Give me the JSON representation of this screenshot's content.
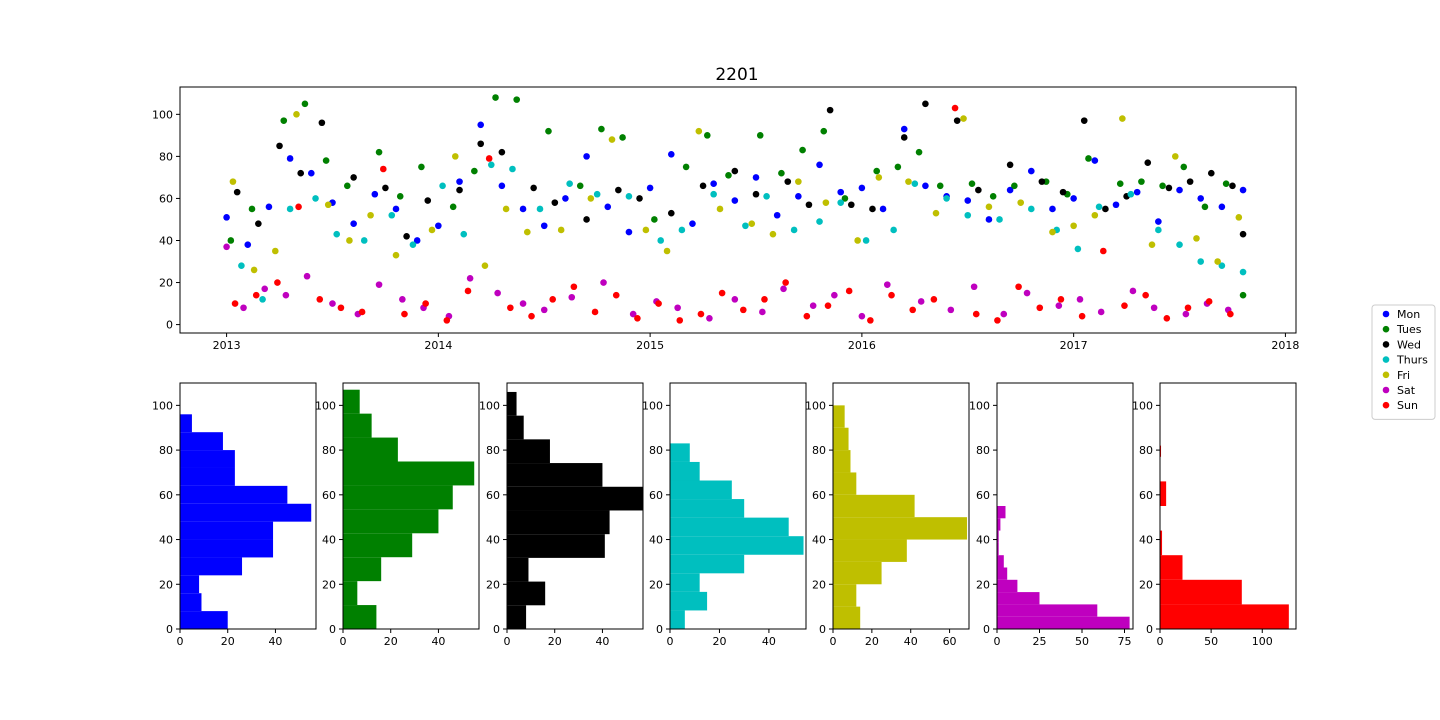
{
  "chart_data": [
    {
      "type": "scatter",
      "title": "2201",
      "xlabel": "",
      "ylabel": "",
      "xlim": [
        2012.78,
        2018.05
      ],
      "ylim": [
        -4,
        113
      ],
      "xticks": [
        2013,
        2014,
        2015,
        2016,
        2017,
        2018
      ],
      "yticks": [
        0,
        20,
        40,
        60,
        80,
        100
      ],
      "grid": false,
      "legend": "right",
      "series": [
        {
          "name": "Mon",
          "color": "#0000ff",
          "x": [
            2013.0,
            2013.1,
            2013.2,
            2013.3,
            2013.4,
            2013.5,
            2013.6,
            2013.7,
            2013.8,
            2013.9,
            2014.0,
            2014.1,
            2014.2,
            2014.3,
            2014.4,
            2014.5,
            2014.6,
            2014.7,
            2014.8,
            2014.9,
            2015.0,
            2015.1,
            2015.2,
            2015.3,
            2015.4,
            2015.5,
            2015.6,
            2015.7,
            2015.8,
            2015.9,
            2016.0,
            2016.1,
            2016.2,
            2016.3,
            2016.4,
            2016.5,
            2016.6,
            2016.7,
            2016.8,
            2016.9,
            2017.0,
            2017.1,
            2017.2,
            2017.3,
            2017.4,
            2017.5,
            2017.6,
            2017.7,
            2017.8
          ],
          "y": [
            51,
            38,
            56,
            79,
            72,
            58,
            48,
            62,
            55,
            40,
            47,
            68,
            95,
            66,
            55,
            47,
            60,
            80,
            56,
            44,
            65,
            81,
            48,
            67,
            59,
            70,
            52,
            61,
            76,
            63,
            65,
            55,
            93,
            66,
            61,
            59,
            50,
            64,
            73,
            55,
            60,
            78,
            57,
            63,
            49,
            64,
            60,
            56,
            64
          ]
        },
        {
          "name": "Tues",
          "color": "#008000",
          "x": [
            2013.02,
            2013.12,
            2013.27,
            2013.37,
            2013.47,
            2013.57,
            2013.72,
            2013.82,
            2013.92,
            2014.07,
            2014.17,
            2014.27,
            2014.37,
            2014.52,
            2014.67,
            2014.77,
            2014.87,
            2015.02,
            2015.17,
            2015.27,
            2015.37,
            2015.52,
            2015.62,
            2015.72,
            2015.82,
            2015.92,
            2016.07,
            2016.17,
            2016.27,
            2016.37,
            2016.52,
            2016.62,
            2016.72,
            2016.87,
            2016.97,
            2017.07,
            2017.22,
            2017.32,
            2017.42,
            2017.52,
            2017.62,
            2017.72,
            2017.8
          ],
          "y": [
            40,
            55,
            97,
            105,
            78,
            66,
            82,
            61,
            75,
            56,
            73,
            108,
            107,
            92,
            66,
            93,
            89,
            50,
            75,
            90,
            71,
            90,
            72,
            83,
            92,
            60,
            73,
            75,
            82,
            66,
            67,
            61,
            66,
            68,
            62,
            79,
            67,
            68,
            66,
            75,
            56,
            67,
            14
          ]
        },
        {
          "name": "Wed",
          "color": "#000000",
          "x": [
            2013.05,
            2013.15,
            2013.25,
            2013.35,
            2013.45,
            2013.6,
            2013.75,
            2013.85,
            2013.95,
            2014.1,
            2014.2,
            2014.3,
            2014.45,
            2014.55,
            2014.7,
            2014.85,
            2014.95,
            2015.1,
            2015.25,
            2015.4,
            2015.5,
            2015.65,
            2015.75,
            2015.85,
            2015.95,
            2016.05,
            2016.2,
            2016.3,
            2016.45,
            2016.55,
            2016.7,
            2016.85,
            2016.95,
            2017.05,
            2017.15,
            2017.25,
            2017.35,
            2017.45,
            2017.55,
            2017.65,
            2017.75,
            2017.8
          ],
          "y": [
            63,
            48,
            85,
            72,
            96,
            70,
            65,
            42,
            59,
            64,
            86,
            82,
            65,
            58,
            50,
            64,
            60,
            53,
            66,
            73,
            62,
            68,
            57,
            102,
            57,
            55,
            89,
            105,
            97,
            64,
            76,
            68,
            63,
            97,
            55,
            61,
            77,
            65,
            68,
            72,
            66,
            43
          ]
        },
        {
          "name": "Thurs",
          "color": "#00bfbf",
          "x": [
            2013.07,
            2013.17,
            2013.3,
            2013.42,
            2013.52,
            2013.65,
            2013.78,
            2013.88,
            2014.02,
            2014.12,
            2014.25,
            2014.35,
            2014.48,
            2014.62,
            2014.75,
            2014.9,
            2015.05,
            2015.15,
            2015.3,
            2015.45,
            2015.55,
            2015.68,
            2015.8,
            2015.9,
            2016.02,
            2016.15,
            2016.25,
            2016.4,
            2016.5,
            2016.65,
            2016.8,
            2016.92,
            2017.02,
            2017.12,
            2017.27,
            2017.4,
            2017.5,
            2017.6,
            2017.7,
            2017.8
          ],
          "y": [
            28,
            12,
            55,
            60,
            43,
            40,
            52,
            38,
            66,
            43,
            76,
            74,
            55,
            67,
            62,
            61,
            40,
            45,
            62,
            47,
            61,
            45,
            49,
            58,
            40,
            45,
            67,
            60,
            52,
            50,
            55,
            45,
            36,
            56,
            62,
            45,
            38,
            30,
            28,
            25
          ]
        },
        {
          "name": "Fri",
          "color": "#bfbf00",
          "x": [
            2013.03,
            2013.13,
            2013.23,
            2013.33,
            2013.48,
            2013.58,
            2013.68,
            2013.8,
            2013.97,
            2014.08,
            2014.22,
            2014.32,
            2014.42,
            2014.58,
            2014.72,
            2014.82,
            2014.98,
            2015.08,
            2015.23,
            2015.33,
            2015.48,
            2015.58,
            2015.7,
            2015.83,
            2015.98,
            2016.08,
            2016.22,
            2016.35,
            2016.48,
            2016.6,
            2016.75,
            2016.9,
            2017.0,
            2017.1,
            2017.23,
            2017.37,
            2017.48,
            2017.58,
            2017.68,
            2017.78
          ],
          "y": [
            68,
            26,
            35,
            100,
            57,
            40,
            52,
            33,
            45,
            80,
            28,
            55,
            44,
            45,
            60,
            88,
            45,
            35,
            92,
            55,
            48,
            43,
            68,
            58,
            40,
            70,
            68,
            53,
            98,
            56,
            58,
            44,
            47,
            52,
            98,
            38,
            80,
            41,
            30,
            51
          ]
        },
        {
          "name": "Sat",
          "color": "#bf00bf",
          "x": [
            2013.0,
            2013.08,
            2013.18,
            2013.28,
            2013.38,
            2013.5,
            2013.62,
            2013.72,
            2013.83,
            2013.93,
            2014.05,
            2014.15,
            2014.28,
            2014.4,
            2014.5,
            2014.63,
            2014.78,
            2014.92,
            2015.03,
            2015.13,
            2015.28,
            2015.4,
            2015.53,
            2015.63,
            2015.77,
            2015.87,
            2016.0,
            2016.12,
            2016.28,
            2016.42,
            2016.53,
            2016.67,
            2016.78,
            2016.93,
            2017.03,
            2017.13,
            2017.28,
            2017.38,
            2017.53,
            2017.63,
            2017.73
          ],
          "y": [
            37,
            8,
            17,
            14,
            23,
            10,
            5,
            19,
            12,
            8,
            4,
            22,
            15,
            10,
            7,
            13,
            20,
            5,
            11,
            8,
            3,
            12,
            6,
            17,
            9,
            14,
            4,
            19,
            11,
            7,
            18,
            5,
            15,
            9,
            12,
            6,
            16,
            8,
            5,
            10,
            7
          ]
        },
        {
          "name": "Sun",
          "color": "#ff0000",
          "x": [
            2013.04,
            2013.14,
            2013.24,
            2013.34,
            2013.44,
            2013.54,
            2013.64,
            2013.74,
            2013.84,
            2013.94,
            2014.04,
            2014.14,
            2014.24,
            2014.34,
            2014.44,
            2014.54,
            2014.64,
            2014.74,
            2014.84,
            2014.94,
            2015.04,
            2015.14,
            2015.24,
            2015.34,
            2015.44,
            2015.54,
            2015.64,
            2015.74,
            2015.84,
            2015.94,
            2016.04,
            2016.14,
            2016.24,
            2016.34,
            2016.44,
            2016.54,
            2016.64,
            2016.74,
            2016.84,
            2016.94,
            2017.04,
            2017.14,
            2017.24,
            2017.34,
            2017.44,
            2017.54,
            2017.64,
            2017.74
          ],
          "y": [
            10,
            14,
            20,
            56,
            12,
            8,
            6,
            74,
            5,
            10,
            2,
            16,
            79,
            8,
            4,
            12,
            18,
            6,
            14,
            3,
            10,
            2,
            5,
            15,
            7,
            12,
            20,
            4,
            9,
            16,
            2,
            14,
            7,
            12,
            103,
            5,
            2,
            18,
            8,
            12,
            4,
            35,
            9,
            14,
            3,
            8,
            11,
            5
          ]
        }
      ]
    },
    {
      "type": "bar",
      "orientation": "horizontal",
      "name": "Mon",
      "color": "#0000ff",
      "bin_edges": [
        0,
        8,
        16,
        24,
        32,
        40,
        48,
        56,
        64,
        72,
        80,
        88,
        96
      ],
      "counts": [
        20,
        9,
        8,
        26,
        39,
        39,
        55,
        45,
        23,
        23,
        18,
        5
      ],
      "xlim": [
        0,
        57
      ],
      "xticks": [
        0,
        20,
        40
      ],
      "ylim": [
        0,
        110
      ],
      "yticks": [
        0,
        20,
        40,
        60,
        80,
        100
      ]
    },
    {
      "type": "bar",
      "orientation": "horizontal",
      "name": "Tues",
      "color": "#008000",
      "bin_edges": [
        0,
        10.7,
        21.4,
        32.1,
        42.8,
        53.5,
        64.2,
        74.9,
        85.6,
        96.3,
        107
      ],
      "counts": [
        14,
        6,
        16,
        29,
        40,
        46,
        55,
        23,
        12,
        7
      ],
      "xlim": [
        0,
        57
      ],
      "xticks": [
        0,
        20,
        40
      ],
      "ylim": [
        0,
        110
      ],
      "yticks": [
        0,
        20,
        40,
        60,
        80,
        100
      ]
    },
    {
      "type": "bar",
      "orientation": "horizontal",
      "name": "Wed",
      "color": "#000000",
      "bin_edges": [
        0,
        10.6,
        21.2,
        31.8,
        42.4,
        53,
        63.6,
        74.2,
        84.8,
        95.4,
        106
      ],
      "counts": [
        8,
        16,
        9,
        41,
        43,
        57,
        40,
        18,
        7,
        4
      ],
      "xlim": [
        0,
        57
      ],
      "xticks": [
        0,
        20,
        40
      ],
      "ylim": [
        0,
        110
      ],
      "yticks": [
        0,
        20,
        40,
        60,
        80,
        100
      ]
    },
    {
      "type": "bar",
      "orientation": "horizontal",
      "name": "Thurs",
      "color": "#00bfbf",
      "bin_edges": [
        0,
        8.3,
        16.6,
        24.9,
        33.2,
        41.5,
        49.8,
        58.1,
        66.4,
        74.7,
        83
      ],
      "counts": [
        6,
        15,
        12,
        30,
        54,
        48,
        30,
        25,
        12,
        8
      ],
      "xlim": [
        0,
        55
      ],
      "xticks": [
        0,
        20,
        40
      ],
      "ylim": [
        0,
        110
      ],
      "yticks": [
        0,
        20,
        40,
        60,
        80,
        100
      ]
    },
    {
      "type": "bar",
      "orientation": "horizontal",
      "name": "Fri",
      "color": "#bfbf00",
      "bin_edges": [
        0,
        10,
        20,
        30,
        40,
        50,
        60,
        70,
        80,
        90,
        100
      ],
      "counts": [
        14,
        12,
        25,
        38,
        69,
        42,
        12,
        9,
        8,
        6
      ],
      "xlim": [
        0,
        70
      ],
      "xticks": [
        0,
        20,
        40,
        60
      ],
      "ylim": [
        0,
        110
      ],
      "yticks": [
        0,
        20,
        40,
        60,
        80,
        100
      ]
    },
    {
      "type": "bar",
      "orientation": "horizontal",
      "name": "Sat",
      "color": "#bf00bf",
      "bin_edges": [
        0,
        5.5,
        11,
        16.5,
        22,
        27.5,
        33,
        38.5,
        44,
        49.5,
        55
      ],
      "counts": [
        78,
        59,
        25,
        12,
        6,
        4,
        1,
        1,
        2,
        5
      ],
      "xlim": [
        0,
        80
      ],
      "xticks": [
        0,
        25,
        50,
        75
      ],
      "ylim": [
        0,
        110
      ],
      "yticks": [
        0,
        20,
        40,
        60,
        80,
        100
      ]
    },
    {
      "type": "bar",
      "orientation": "horizontal",
      "name": "Sun",
      "color": "#ff0000",
      "bin_edges": [
        0,
        11,
        22,
        33,
        44,
        55,
        66,
        77,
        82
      ],
      "counts": [
        126,
        80,
        22,
        2,
        0,
        6,
        0,
        1
      ],
      "xlim": [
        0,
        133
      ],
      "xticks": [
        0,
        50,
        100
      ],
      "ylim": [
        0,
        110
      ],
      "yticks": [
        0,
        20,
        40,
        60,
        80,
        100
      ]
    }
  ]
}
